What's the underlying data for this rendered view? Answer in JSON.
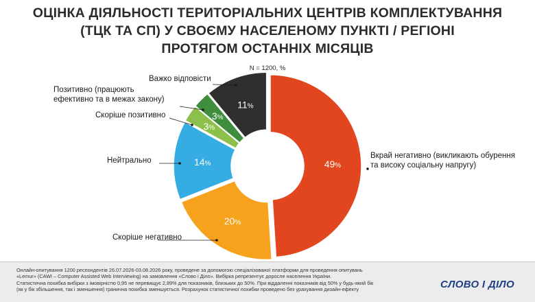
{
  "title_lines": [
    "ОЦІНКА ДІЯЛЬНОСТІ ТЕРИТОРІАЛЬНИХ ЦЕНТРІВ КОМПЛЕКТУВАННЯ",
    "(ТЦК ТА СП) У СВОЄМУ НАСЕЛЕНОМУ ПУНКТІ / РЕГІОНІ",
    "ПРОТЯГОМ ОСТАННІХ МІСЯЦІВ"
  ],
  "sample_note": "N = 1200, %",
  "chart_data": {
    "type": "pie",
    "donut": true,
    "start_angle_deg": 0,
    "direction": "clockwise",
    "slices": [
      {
        "label_lines": [
          "Вкрай негативно (викликають обурення",
          "та високу соціальну напругу)"
        ],
        "value": 49,
        "color": "#e2461f"
      },
      {
        "label_lines": [
          "Скоріше негативно"
        ],
        "value": 20,
        "color": "#f6a21d"
      },
      {
        "label_lines": [
          "Нейтрально"
        ],
        "value": 14,
        "color": "#35ade2"
      },
      {
        "label_lines": [
          "Скоріше позитивно"
        ],
        "value": 3,
        "color": "#8cc04a"
      },
      {
        "label_lines": [
          "Позитивно (працюють",
          "ефективно та в межах закону)"
        ],
        "value": 3,
        "color": "#3e8e3e"
      },
      {
        "label_lines": [
          "Важко відповісти"
        ],
        "value": 11,
        "color": "#2f2f2f"
      }
    ],
    "value_suffix": "%"
  },
  "footer": {
    "text_lines": [
      "Онлайн-опитування 1200 респондентів 26.07.2026-03.08.2026 року, проведене за допомогою спеціалізованої платформи для проведення опитувань",
      "«Lemur» (CAWI – Computer Assisted Web Interviewing) на замовлення «Слово і Діло». Вибірка репрезентує доросле населення України.",
      "Статистична похибка вибірки з імовірністю 0,95 не перевищує 2,89% для показників, близьких до 50%. При віддаленні показників від 50% у будь-який бік",
      "(як у бік збільшення, так і зменшення) гранична похибка зменшується. Розрахунок статистичної похибки проведено без урахування дизайн-ефекту"
    ],
    "logo": "СЛОВО І ДІЛО"
  }
}
